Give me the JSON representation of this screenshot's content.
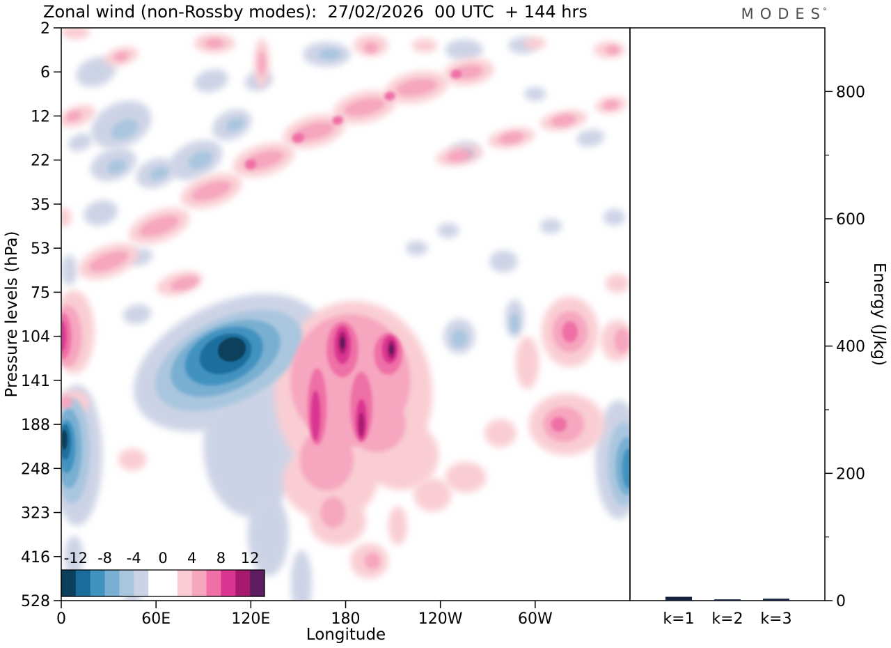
{
  "title": "Zonal wind (non-Rossby modes):  27/02/2026  00 UTC  + 144 hrs",
  "logo": {
    "text": "MODES",
    "degree": "°"
  },
  "axes": {
    "pressure_label": "Pressure levels (hPa)",
    "longitude_label": "Longitude",
    "energy_label": "Energy (J/kg)"
  },
  "chart_data": {
    "type": "contour+bar",
    "main_panel": {
      "x_ticks": [
        {
          "deg": 0,
          "label": "0"
        },
        {
          "deg": 60,
          "label": "60E"
        },
        {
          "deg": 120,
          "label": "120E"
        },
        {
          "deg": 180,
          "label": "180"
        },
        {
          "deg": 240,
          "label": "120W"
        },
        {
          "deg": 300,
          "label": "60W"
        }
      ],
      "pressure_levels": [
        "2",
        "6",
        "12",
        "22",
        "35",
        "53",
        "75",
        "104",
        "141",
        "188",
        "248",
        "323",
        "416",
        "528"
      ],
      "colorbar": {
        "tick_labels": [
          "-12",
          "-8",
          "-4",
          "0",
          "4",
          "8",
          "12"
        ],
        "boundary_indices": [
          1,
          3,
          5,
          7,
          9,
          11,
          13
        ],
        "segment_colors": [
          "#0b3f5c",
          "#1b6e9c",
          "#4292c0",
          "#79afd1",
          "#a9c6de",
          "#cdd3e6",
          "#ffffff",
          "#ffffff",
          "#f9cdd3",
          "#f6a6bf",
          "#ef6fa6",
          "#da3590",
          "#a81a6e",
          "#5e1d60"
        ]
      },
      "palette": {
        "n1": "#cdd3e6",
        "n2": "#a9c6de",
        "n3": "#79afd1",
        "n4": "#4292c0",
        "n5": "#1b6e9c",
        "n6": "#0b3f5c",
        "p1": "#f9cdd3",
        "p2": "#f6a6bf",
        "p3": "#ef6fa6",
        "p4": "#da3590",
        "p5": "#a81a6e",
        "p6": "#5e1d60"
      },
      "features_format": [
        "lon_deg",
        "level_index",
        "rx_deg",
        "ry_level_units",
        "rotation_deg",
        "intensity_tier"
      ],
      "features": [
        [
          106,
          7.6,
          64,
          1.35,
          -25,
          "n1"
        ],
        [
          120,
          9.5,
          30,
          1.6,
          0,
          "n1"
        ],
        [
          131,
          11.5,
          13,
          0.95,
          0,
          "n1"
        ],
        [
          152,
          12.6,
          6.6,
          0.75,
          0,
          "n1"
        ],
        [
          10,
          9.7,
          16,
          1.6,
          0,
          "n1"
        ],
        [
          353,
          9.8,
          15,
          1.35,
          0,
          "n1"
        ],
        [
          22,
          1.0,
          13,
          0.32,
          -20,
          "n1"
        ],
        [
          38,
          2.2,
          20,
          0.5,
          -25,
          "n1"
        ],
        [
          33,
          3.1,
          15,
          0.35,
          -20,
          "n1"
        ],
        [
          25,
          4.2,
          11,
          0.28,
          -15,
          "n1"
        ],
        [
          60,
          3.3,
          13,
          0.32,
          -20,
          "n1"
        ],
        [
          85,
          3.0,
          18,
          0.4,
          -25,
          "n1"
        ],
        [
          108,
          2.2,
          13,
          0.32,
          -25,
          "n1"
        ],
        [
          95,
          1.2,
          11,
          0.25,
          -15,
          "n1"
        ],
        [
          125,
          1.2,
          9,
          0.22,
          -15,
          "n1"
        ],
        [
          12,
          2.6,
          8,
          0.19,
          -20,
          "n1"
        ],
        [
          5,
          5.5,
          5,
          0.35,
          0,
          "n1"
        ],
        [
          50,
          5.2,
          8,
          0.19,
          -15,
          "n1"
        ],
        [
          168,
          0.6,
          15,
          0.28,
          0,
          "n1"
        ],
        [
          255,
          0.5,
          12,
          0.24,
          0,
          "n1"
        ],
        [
          292,
          0.4,
          9,
          0.19,
          0,
          "n1"
        ],
        [
          255,
          2.8,
          10,
          0.22,
          -10,
          "n1"
        ],
        [
          245,
          4.6,
          7,
          0.17,
          0,
          "n1"
        ],
        [
          280,
          5.3,
          9,
          0.25,
          0,
          "n1"
        ],
        [
          310,
          4.5,
          7,
          0.17,
          0,
          "n1"
        ],
        [
          335,
          2.5,
          9,
          0.19,
          -10,
          "n1"
        ],
        [
          300,
          1.5,
          7,
          0.16,
          0,
          "n1"
        ],
        [
          252,
          7.0,
          10,
          0.4,
          0,
          "n1"
        ],
        [
          287,
          6.6,
          6,
          0.44,
          0,
          "n1"
        ],
        [
          225,
          5.0,
          7,
          0.17,
          0,
          "n1"
        ],
        [
          8,
          12.0,
          6,
          0.47,
          0,
          "n1"
        ],
        [
          45,
          12.8,
          6,
          0.28,
          0,
          "n1"
        ],
        [
          350,
          4.3,
          7,
          0.19,
          0,
          "n1"
        ],
        [
          48,
          6.5,
          9,
          0.22,
          -10,
          "n1"
        ],
        [
          106,
          7.55,
          50,
          0.95,
          -25,
          "n2"
        ],
        [
          7,
          9.6,
          11,
          1.2,
          0,
          "n2"
        ],
        [
          356,
          9.9,
          10,
          0.95,
          0,
          "n2"
        ],
        [
          40,
          2.3,
          9,
          0.2,
          -25,
          "n2"
        ],
        [
          35,
          3.15,
          6,
          0.15,
          -20,
          "n2"
        ],
        [
          62,
          3.3,
          6,
          0.13,
          -20,
          "n2"
        ],
        [
          88,
          3.0,
          8,
          0.18,
          -25,
          "n2"
        ],
        [
          110,
          2.2,
          6,
          0.13,
          -25,
          "n2"
        ],
        [
          170,
          0.6,
          7,
          0.12,
          0,
          "n2"
        ],
        [
          257,
          2.85,
          4,
          0.1,
          0,
          "n2"
        ],
        [
          252,
          7.05,
          5,
          0.2,
          0,
          "n2"
        ],
        [
          287,
          6.7,
          3,
          0.22,
          0,
          "n2"
        ],
        [
          104,
          7.5,
          37,
          0.74,
          -25,
          "n3"
        ],
        [
          5,
          9.55,
          8,
          0.9,
          0,
          "n3"
        ],
        [
          358,
          9.95,
          7,
          0.66,
          0,
          "n3"
        ],
        [
          103,
          7.45,
          26,
          0.6,
          -24,
          "n4"
        ],
        [
          3.5,
          9.5,
          5.5,
          0.6,
          0,
          "n4"
        ],
        [
          359,
          10.0,
          4,
          0.45,
          0,
          "n4"
        ],
        [
          104,
          7.4,
          17,
          0.43,
          -22,
          "n5"
        ],
        [
          2.5,
          9.4,
          3.5,
          0.4,
          0,
          "n5"
        ],
        [
          108,
          7.3,
          9,
          0.27,
          -20,
          "n6"
        ],
        [
          2,
          9.35,
          1.8,
          0.22,
          0,
          "n6"
        ],
        [
          8,
          6.9,
          13,
          0.95,
          0,
          "p1"
        ],
        [
          30,
          5.3,
          20,
          0.35,
          -20,
          "p1"
        ],
        [
          62,
          4.5,
          20,
          0.35,
          -20,
          "p1"
        ],
        [
          95,
          3.7,
          20,
          0.35,
          -18,
          "p1"
        ],
        [
          128,
          3.0,
          20,
          0.35,
          -16,
          "p1"
        ],
        [
          160,
          2.35,
          20,
          0.35,
          -14,
          "p1"
        ],
        [
          192,
          1.8,
          20,
          0.35,
          -12,
          "p1"
        ],
        [
          225,
          1.35,
          20,
          0.35,
          -10,
          "p1"
        ],
        [
          258,
          1.0,
          16,
          0.3,
          -8,
          "p1"
        ],
        [
          75,
          5.8,
          15,
          0.25,
          -15,
          "p1"
        ],
        [
          10,
          2.0,
          12,
          0.22,
          -20,
          "p1"
        ],
        [
          38,
          0.65,
          11,
          0.2,
          -15,
          "p1"
        ],
        [
          9,
          0.1,
          9,
          0.16,
          0,
          "p1"
        ],
        [
          97,
          0.35,
          13,
          0.22,
          0,
          "p1"
        ],
        [
          127,
          0.8,
          5,
          0.55,
          0,
          "p1"
        ],
        [
          196,
          0.4,
          11,
          0.24,
          0,
          "p1"
        ],
        [
          230,
          0.4,
          8,
          0.16,
          0,
          "p1"
        ],
        [
          252,
          2.9,
          15,
          0.22,
          -10,
          "p1"
        ],
        [
          285,
          2.5,
          15,
          0.22,
          -10,
          "p1"
        ],
        [
          318,
          2.1,
          15,
          0.22,
          -10,
          "p1"
        ],
        [
          348,
          1.75,
          10,
          0.19,
          -8,
          "p1"
        ],
        [
          347,
          0.5,
          10,
          0.19,
          0,
          "p1"
        ],
        [
          300,
          0.35,
          7,
          0.14,
          0,
          "p1"
        ],
        [
          322,
          6.9,
          18,
          0.8,
          0,
          "p1"
        ],
        [
          320,
          9.0,
          24,
          0.7,
          0,
          "p1"
        ],
        [
          295,
          7.6,
          7.5,
          0.6,
          0,
          "p1"
        ],
        [
          278,
          9.2,
          10,
          0.32,
          0,
          "p1"
        ],
        [
          256,
          10.2,
          13,
          0.35,
          0,
          "p1"
        ],
        [
          185,
          8.3,
          50,
          2.1,
          0,
          "p1"
        ],
        [
          170,
          10.3,
          30,
          0.87,
          0,
          "p1"
        ],
        [
          215,
          9.7,
          24,
          0.79,
          0,
          "p1"
        ],
        [
          175,
          11.2,
          18,
          0.55,
          0,
          "p1"
        ],
        [
          195,
          12.1,
          12,
          0.4,
          0,
          "p1"
        ],
        [
          213,
          11.3,
          6,
          0.44,
          0,
          "p1"
        ],
        [
          235,
          10.6,
          12,
          0.38,
          0,
          "p1"
        ],
        [
          8,
          8.5,
          10,
          0.28,
          0,
          "p1"
        ],
        [
          45,
          9.8,
          9,
          0.25,
          0,
          "p1"
        ],
        [
          352,
          7.1,
          10.5,
          0.47,
          0,
          "p1"
        ],
        [
          352,
          5.8,
          7.5,
          0.22,
          0,
          "p1"
        ],
        [
          2,
          4.3,
          4.4,
          0.22,
          0,
          "p1"
        ],
        [
          30,
          5.3,
          13,
          0.18,
          -20,
          "p2"
        ],
        [
          62,
          4.5,
          13,
          0.18,
          -20,
          "p2"
        ],
        [
          95,
          3.7,
          13,
          0.18,
          -18,
          "p2"
        ],
        [
          128,
          3.0,
          13,
          0.18,
          -16,
          "p2"
        ],
        [
          160,
          2.35,
          13,
          0.18,
          -14,
          "p2"
        ],
        [
          192,
          1.8,
          13,
          0.18,
          -12,
          "p2"
        ],
        [
          225,
          1.35,
          13,
          0.18,
          -10,
          "p2"
        ],
        [
          258,
          1.0,
          9,
          0.15,
          -8,
          "p2"
        ],
        [
          4,
          7.0,
          9,
          0.7,
          0,
          "p2"
        ],
        [
          78,
          5.8,
          9,
          0.14,
          -15,
          "p2"
        ],
        [
          8,
          2.0,
          5,
          0.11,
          -20,
          "p2"
        ],
        [
          38,
          0.65,
          4.4,
          0.1,
          -15,
          "p2"
        ],
        [
          97,
          0.35,
          6,
          0.11,
          0,
          "p2"
        ],
        [
          127,
          0.8,
          2.2,
          0.28,
          0,
          "p2"
        ],
        [
          196,
          0.45,
          4.4,
          0.13,
          0,
          "p2"
        ],
        [
          252,
          2.9,
          8,
          0.13,
          -10,
          "p2"
        ],
        [
          285,
          2.5,
          8,
          0.13,
          -10,
          "p2"
        ],
        [
          318,
          2.1,
          8,
          0.13,
          -10,
          "p2"
        ],
        [
          348,
          1.75,
          5,
          0.1,
          -8,
          "p2"
        ],
        [
          349,
          0.5,
          4.4,
          0.1,
          0,
          "p2"
        ],
        [
          322,
          6.9,
          11,
          0.47,
          0,
          "p2"
        ],
        [
          318,
          9.0,
          13,
          0.4,
          0,
          "p2"
        ],
        [
          183,
          8.0,
          38,
          1.5,
          0,
          "p2"
        ],
        [
          168,
          9.8,
          17,
          0.7,
          0,
          "p2"
        ],
        [
          200,
          9.0,
          18,
          0.63,
          0,
          "p2"
        ],
        [
          172,
          11.0,
          8,
          0.35,
          0,
          "p2"
        ],
        [
          197,
          12.1,
          5,
          0.19,
          0,
          "p2"
        ],
        [
          3,
          8.5,
          4,
          0.15,
          0,
          "p2"
        ],
        [
          355,
          7.1,
          5,
          0.28,
          0,
          "p2"
        ],
        [
          150,
          2.5,
          4,
          0.11,
          -14,
          "p3"
        ],
        [
          175,
          2.1,
          3.5,
          0.1,
          -12,
          "p3"
        ],
        [
          120,
          3.1,
          3.5,
          0.11,
          -16,
          "p3"
        ],
        [
          250,
          1.05,
          3.5,
          0.1,
          -8,
          "p3"
        ],
        [
          208,
          1.55,
          3.5,
          0.1,
          -10,
          "p3"
        ],
        [
          1.5,
          7.0,
          5,
          0.52,
          0,
          "p3"
        ],
        [
          178,
          7.3,
          10,
          0.63,
          0,
          "p3"
        ],
        [
          162,
          8.6,
          6,
          0.87,
          0,
          "p3"
        ],
        [
          190,
          8.6,
          7,
          0.79,
          0,
          "p3"
        ],
        [
          207,
          7.4,
          9,
          0.47,
          0,
          "p3"
        ],
        [
          322,
          6.9,
          5,
          0.24,
          0,
          "p3"
        ],
        [
          315,
          9.0,
          5,
          0.17,
          0,
          "p3"
        ],
        [
          0.5,
          7.0,
          2.6,
          0.35,
          0,
          "p4"
        ],
        [
          178,
          7.2,
          5.3,
          0.43,
          0,
          "p4"
        ],
        [
          161,
          8.8,
          3,
          0.57,
          0,
          "p4"
        ],
        [
          190,
          8.9,
          3.5,
          0.47,
          0,
          "p4"
        ],
        [
          208,
          7.3,
          5,
          0.32,
          0,
          "p4"
        ],
        [
          178,
          7.15,
          2.6,
          0.25,
          0,
          "p5"
        ],
        [
          190,
          9.0,
          1.8,
          0.27,
          0,
          "p5"
        ],
        [
          209,
          7.3,
          2.6,
          0.21,
          0,
          "p5"
        ],
        [
          178,
          7.15,
          1.3,
          0.13,
          0,
          "p6"
        ],
        [
          209,
          7.3,
          1.3,
          0.11,
          0,
          "p6"
        ]
      ]
    },
    "energy_panel": {
      "y_max": 900,
      "y_ticks": [
        0,
        200,
        400,
        600,
        800
      ],
      "y_minor_ticks": [
        100,
        300,
        500,
        700
      ],
      "bars": [
        {
          "label": "k=1",
          "value": 6
        },
        {
          "label": "k=2",
          "value": 2
        },
        {
          "label": "k=3",
          "value": 3
        }
      ],
      "bar_color": "#14213d"
    }
  }
}
